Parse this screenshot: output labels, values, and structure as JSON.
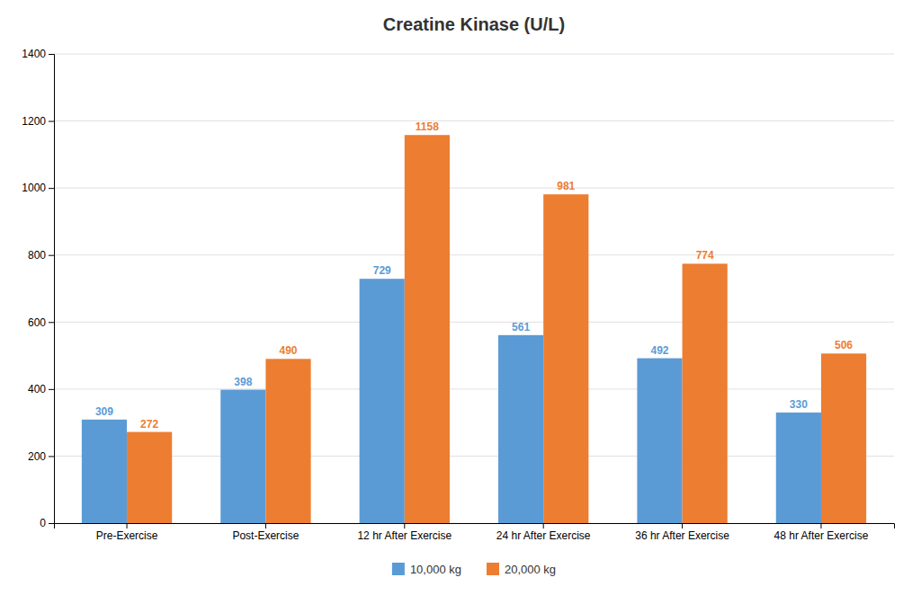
{
  "chart_data": {
    "type": "bar",
    "title": "Creatine Kinase (U/L)",
    "categories": [
      "Pre-Exercise",
      "Post-Exercise",
      "12 hr After Exercise",
      "24 hr After Exercise",
      "36 hr After Exercise",
      "48 hr After Exercise"
    ],
    "series": [
      {
        "name": "10,000 kg",
        "color": "#5B9BD5",
        "values": [
          309,
          398,
          729,
          561,
          492,
          330
        ]
      },
      {
        "name": "20,000 kg",
        "color": "#ED7D31",
        "values": [
          272,
          490,
          1158,
          981,
          774,
          506
        ]
      }
    ],
    "ylim": [
      0,
      1400
    ],
    "yticks": [
      0,
      200,
      400,
      600,
      800,
      1000,
      1200,
      1400
    ],
    "grid": true,
    "legend": "bottom",
    "data_labels": true
  }
}
